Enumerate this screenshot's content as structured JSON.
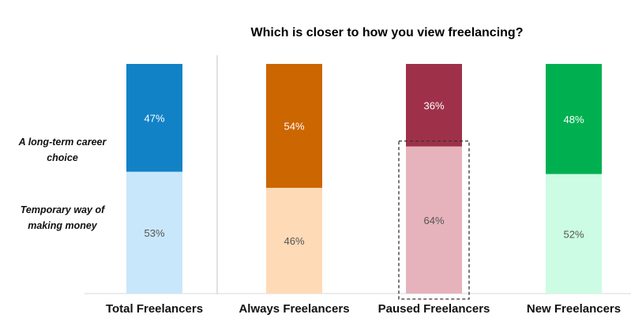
{
  "chart_data": {
    "type": "bar",
    "stacked": true,
    "title": "Which is closer to how you view freelancing?",
    "categories": [
      "Total Freelancers",
      "Always Freelancers",
      "Paused Freelancers",
      "New Freelancers"
    ],
    "series": [
      {
        "name": "A long-term career choice",
        "values": [
          47,
          54,
          36,
          48
        ],
        "labels": [
          "47%",
          "54%",
          "36%",
          "48%"
        ],
        "colors": [
          "#1282c6",
          "#cc6600",
          "#9e3149",
          "#00b050"
        ],
        "label_color": "#ffffff"
      },
      {
        "name": "Temporary way of making money",
        "values": [
          53,
          46,
          64,
          52
        ],
        "labels": [
          "53%",
          "46%",
          "64%",
          "52%"
        ],
        "colors": [
          "#c9e7fa",
          "#fedab7",
          "#e6b3bd",
          "#ccfce3"
        ],
        "label_color": "#555555"
      }
    ],
    "series_label_lines": [
      [
        "A long-term career",
        "choice"
      ],
      [
        "Temporary way of",
        "making money"
      ]
    ],
    "ylim": [
      0,
      100
    ],
    "highlighted": {
      "category": "Paused Freelancers",
      "series": "Temporary way of making money",
      "style": "dashed-box"
    },
    "divider_after": "Total Freelancers",
    "grid": false
  }
}
